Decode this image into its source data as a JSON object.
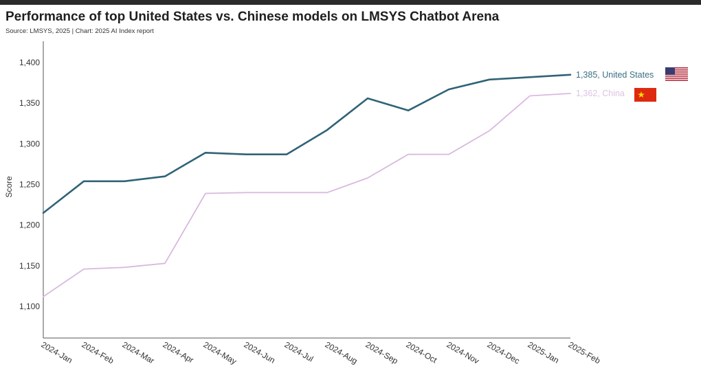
{
  "chart_data": {
    "type": "line",
    "title": "Performance of top United States vs. Chinese models on LMSYS Chatbot Arena",
    "subtitle": "Source: LMSYS, 2025 | Chart: 2025 AI Index report",
    "xlabel": "",
    "ylabel": "Score",
    "ylim": [
      1070,
      1430
    ],
    "yticks": [
      1100,
      1150,
      1200,
      1250,
      1300,
      1350,
      1400
    ],
    "ytick_labels": [
      "1,100",
      "1,150",
      "1,200",
      "1,250",
      "1,300",
      "1,350",
      "1,400"
    ],
    "categories": [
      "2024-Jan",
      "2024-Feb",
      "2024-Mar",
      "2024-Apr",
      "2024-May",
      "2024-Jun",
      "2024-Jul",
      "2024-Aug",
      "2024-Sep",
      "2024-Oct",
      "2024-Nov",
      "2024-Dec",
      "2025-Jan",
      "2025-Feb"
    ],
    "grid": false,
    "series": [
      {
        "name": "United States",
        "end_label": "1,385, United States",
        "color": "#2f6377",
        "values": [
          1215,
          1254,
          1254,
          1260,
          1289,
          1287,
          1287,
          1317,
          1356,
          1341,
          1367,
          1379,
          1382,
          1385
        ]
      },
      {
        "name": "China",
        "end_label": "1,362, China",
        "color": "#d9b9df",
        "values": [
          1112,
          1146,
          1148,
          1153,
          1239,
          1240,
          1240,
          1240,
          1258,
          1287,
          1287,
          1316,
          1359,
          1362
        ]
      }
    ]
  }
}
